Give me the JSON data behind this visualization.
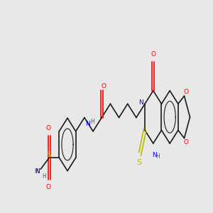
{
  "bg_color": "#e8e8e8",
  "bond_color": "#1a1a1a",
  "atom_colors": {
    "N": "#0000ee",
    "O": "#ff0000",
    "S": "#bbbb00",
    "H": "#555555",
    "C": "#1a1a1a"
  },
  "figsize": [
    3.0,
    3.0
  ],
  "dpi": 100,
  "xmin": -0.5,
  "xmax": 10.5,
  "ymin": 3.2,
  "ymax": 7.2
}
